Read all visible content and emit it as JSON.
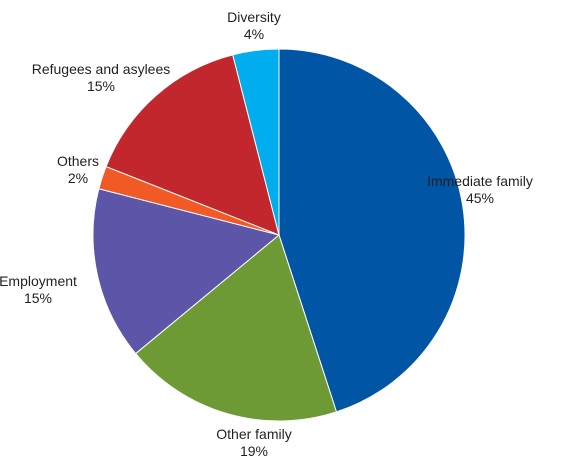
{
  "chart_data": {
    "type": "pie",
    "title": "",
    "slices": [
      {
        "label": "Immediate family",
        "value": 45,
        "value_label": "45%",
        "color": "#0055a5"
      },
      {
        "label": "Other family",
        "value": 19,
        "value_label": "19%",
        "color": "#6e9a35"
      },
      {
        "label": "Employment",
        "value": 15,
        "value_label": "15%",
        "color": "#5c55a8"
      },
      {
        "label": "Others",
        "value": 2,
        "value_label": "2%",
        "color": "#f15a24"
      },
      {
        "label": "Refugees and asylees",
        "value": 15,
        "value_label": "15%",
        "color": "#c1272d"
      },
      {
        "label": "Diversity",
        "value": 4,
        "value_label": "4%",
        "color": "#00aeef"
      }
    ],
    "start_angle_deg": 0,
    "direction": "clockwise",
    "legend": "none",
    "labels": "outside"
  }
}
